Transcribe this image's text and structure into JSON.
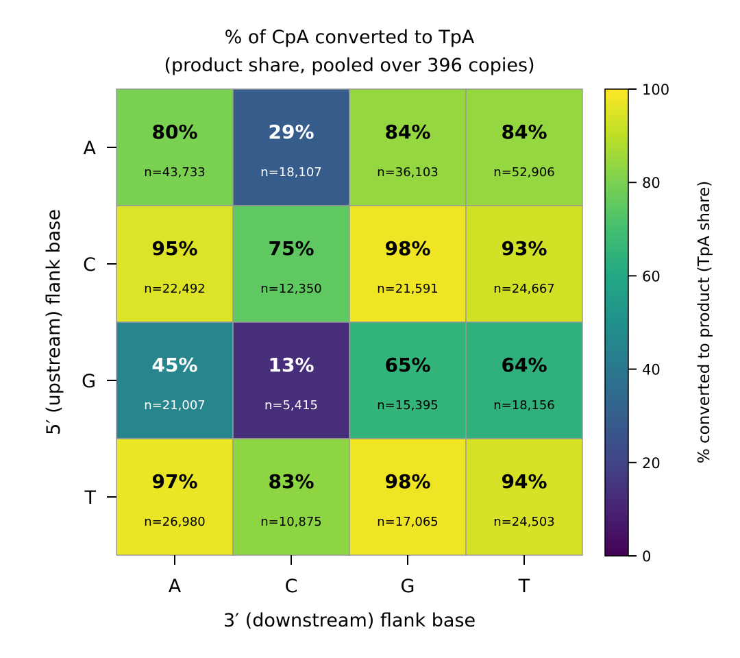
{
  "chart_data": {
    "type": "heatmap",
    "title": "% of CpA converted to TpA",
    "subtitle": "(product share, pooled over 396 copies)",
    "xlabel": "3′ (downstream) flank base",
    "ylabel": "5′ (upstream) flank base",
    "x_categories": [
      "A",
      "C",
      "G",
      "T"
    ],
    "y_categories": [
      "A",
      "C",
      "G",
      "T"
    ],
    "values": [
      [
        80,
        29,
        84,
        84
      ],
      [
        95,
        75,
        98,
        93
      ],
      [
        45,
        13,
        65,
        64
      ],
      [
        97,
        83,
        98,
        94
      ]
    ],
    "value_labels": [
      [
        "80%",
        "29%",
        "84%",
        "84%"
      ],
      [
        "95%",
        "75%",
        "98%",
        "93%"
      ],
      [
        "45%",
        "13%",
        "65%",
        "64%"
      ],
      [
        "97%",
        "83%",
        "98%",
        "94%"
      ]
    ],
    "count_labels": [
      [
        "n=43,733",
        "n=18,107",
        "n=36,103",
        "n=52,906"
      ],
      [
        "n=22,492",
        "n=12,350",
        "n=21,591",
        "n=24,667"
      ],
      [
        "n=21,007",
        "n=5,415",
        "n=15,395",
        "n=18,156"
      ],
      [
        "n=26,980",
        "n=10,875",
        "n=17,065",
        "n=24,503"
      ]
    ],
    "colormap": "viridis",
    "colorbar": {
      "label": "% converted to product (TpA share)",
      "range": [
        0,
        100
      ],
      "ticks": [
        "0",
        "20",
        "40",
        "60",
        "80",
        "100"
      ]
    },
    "grid": false,
    "colors": {
      "cell_border": "#9a9a9a",
      "text_dark": "#000000",
      "text_light": "#ffffff"
    }
  }
}
